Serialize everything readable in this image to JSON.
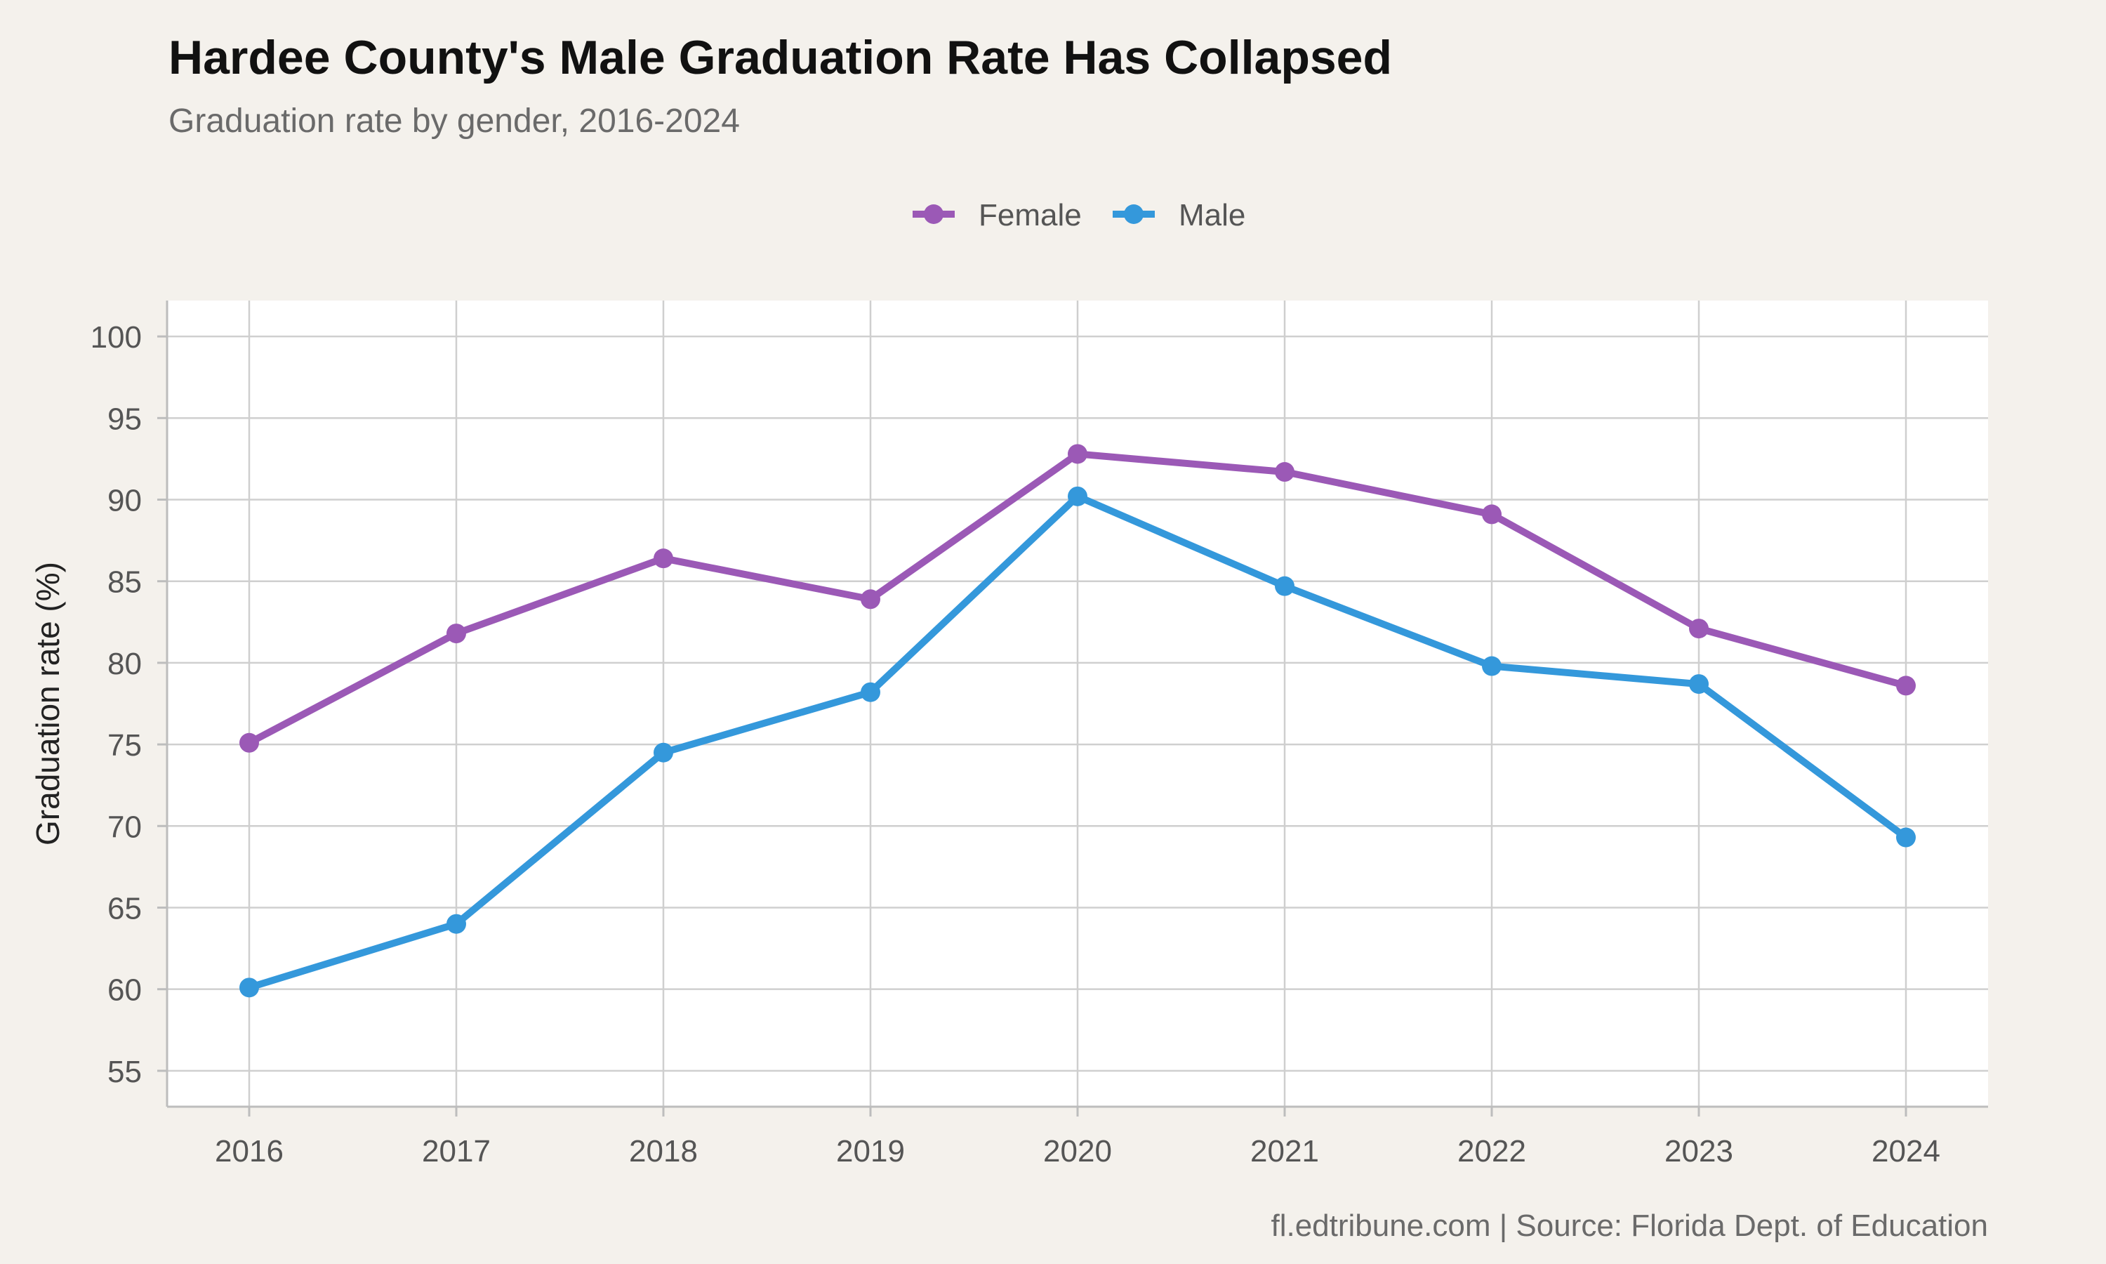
{
  "chart_data": {
    "type": "line",
    "title": "Hardee County's Male Graduation Rate Has Collapsed",
    "subtitle": "Graduation rate by gender, 2016-2024",
    "xlabel": "",
    "ylabel": "Graduation rate (%)",
    "caption": "fl.edtribune.com | Source: Florida Dept. of Education",
    "x": [
      2016,
      2017,
      2018,
      2019,
      2020,
      2021,
      2022,
      2023,
      2024
    ],
    "x_tick_labels": [
      "2016",
      "2017",
      "2018",
      "2019",
      "2020",
      "2021",
      "2022",
      "2023",
      "2024"
    ],
    "y_ticks": [
      55,
      60,
      65,
      70,
      75,
      80,
      85,
      90,
      95,
      100
    ],
    "ylim": [
      52.8,
      102.2
    ],
    "grid": true,
    "legend_position": "top",
    "series": [
      {
        "name": "Female",
        "color": "#9b59b6",
        "values": [
          75.1,
          81.8,
          86.4,
          83.9,
          92.8,
          91.7,
          89.1,
          82.1,
          78.6
        ]
      },
      {
        "name": "Male",
        "color": "#3498db",
        "values": [
          60.1,
          64.0,
          74.5,
          78.2,
          90.2,
          84.7,
          79.8,
          78.7,
          69.3
        ]
      }
    ]
  }
}
